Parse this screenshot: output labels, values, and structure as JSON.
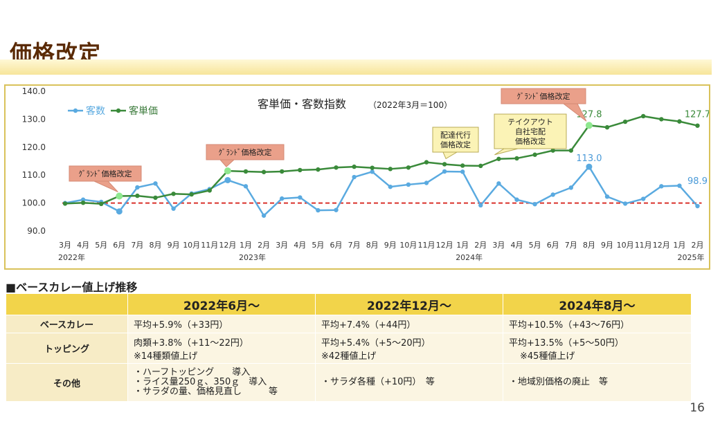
{
  "page": {
    "title": "価格改定",
    "page_number": "16"
  },
  "chart_data": {
    "type": "line",
    "title": "客単価・客数指数",
    "subtitle": "（2022年3月＝100）",
    "x": [
      "3月",
      "4月",
      "5月",
      "6月",
      "7月",
      "8月",
      "9月",
      "10月",
      "11月",
      "12月",
      "1月",
      "2月",
      "3月",
      "4月",
      "5月",
      "6月",
      "7月",
      "8月",
      "9月",
      "10月",
      "11月",
      "12月",
      "1月",
      "2月",
      "3月",
      "4月",
      "5月",
      "6月",
      "7月",
      "8月",
      "9月",
      "10月",
      "11月",
      "12月",
      "1月",
      "2月"
    ],
    "year_labels": [
      {
        "index": 0,
        "label": "2022年"
      },
      {
        "index": 10,
        "label": "2023年"
      },
      {
        "index": 22,
        "label": "2024年"
      },
      {
        "index": 35,
        "label": "2025年"
      }
    ],
    "ylim": [
      90,
      140
    ],
    "yticks": [
      "90.0",
      "100.0",
      "110.0",
      "120.0",
      "130.0",
      "140.0"
    ],
    "baseline": 100,
    "legend_position": "top-left",
    "series": [
      {
        "name": "客数",
        "color": "#5aaae0",
        "values": [
          100.0,
          101.2,
          100.4,
          97.0,
          105.6,
          107.0,
          98.0,
          103.4,
          105.0,
          108.2,
          106.0,
          95.5,
          101.6,
          102.0,
          97.4,
          97.5,
          109.3,
          111.2,
          105.8,
          106.6,
          107.2,
          111.3,
          111.2,
          99.2,
          107.0,
          101.2,
          99.6,
          103.0,
          105.5,
          113.0,
          102.3,
          99.8,
          101.5,
          106.0,
          106.2,
          98.9
        ]
      },
      {
        "name": "客単価",
        "color": "#3a8a3a",
        "values": [
          99.8,
          100.1,
          99.7,
          102.5,
          102.6,
          101.9,
          103.3,
          103.1,
          104.5,
          111.5,
          111.3,
          111.1,
          111.3,
          111.8,
          112.0,
          112.7,
          113.0,
          112.6,
          112.2,
          112.7,
          114.6,
          113.9,
          113.4,
          113.3,
          115.8,
          116.0,
          117.3,
          118.8,
          118.8,
          127.8,
          127.1,
          129.1,
          131.1,
          130.0,
          129.2,
          127.7
        ]
      }
    ],
    "data_labels": [
      {
        "series": "客単価",
        "index": 29,
        "text": "127.8"
      },
      {
        "series": "客単価",
        "index": 35,
        "text": "127.7"
      },
      {
        "series": "客数",
        "index": 29,
        "text": "113.0"
      },
      {
        "series": "客数",
        "index": 35,
        "text": "98.9"
      }
    ],
    "annotations": [
      {
        "index": 3,
        "lines": [
          "ｸﾞﾗﾝﾄﾞ価格改定"
        ],
        "style": "pink"
      },
      {
        "index": 9,
        "lines": [
          "ｸﾞﾗﾝﾄﾞ価格改定"
        ],
        "style": "pink"
      },
      {
        "index": 21,
        "lines": [
          "配達代行",
          "価格改定"
        ],
        "style": "yellow"
      },
      {
        "index": 24,
        "lines": [
          "テイクアウト",
          "自社宅配",
          "価格改定"
        ],
        "style": "yellow"
      },
      {
        "index": 29,
        "lines": [
          "ｸﾞﾗﾝﾄﾞ価格改定"
        ],
        "style": "pink"
      }
    ]
  },
  "section": {
    "title": "■ベースカレー値上げ推移"
  },
  "table": {
    "headers": [
      "",
      "2022年6月～",
      "2022年12月～",
      "2024年8月～"
    ],
    "rows": [
      {
        "label": "ベースカレー",
        "cells": [
          [
            "平均+5.9%（+33円）"
          ],
          [
            "平均+7.4%（+44円）"
          ],
          [
            "平均+10.5%（+43～76円）"
          ]
        ]
      },
      {
        "label": "トッピング",
        "cells": [
          [
            "肉類+3.8%（+11～22円）",
            "※14種類値上げ"
          ],
          [
            "平均+5.4%（+5～20円）",
            "※42種値上げ"
          ],
          [
            "平均+13.5%（+5～50円）",
            "※45種値上げ"
          ]
        ]
      },
      {
        "label": "その他",
        "cells": [
          [
            "・ハーフトッピング　　導入",
            "・ライス量250ｇ、350ｇ　導入",
            "・サラダの量、価格見直し　　　等"
          ],
          [
            "・サラダ各種（+10円）　等"
          ],
          [
            "・地域別価格の廃止　等"
          ]
        ]
      }
    ]
  }
}
